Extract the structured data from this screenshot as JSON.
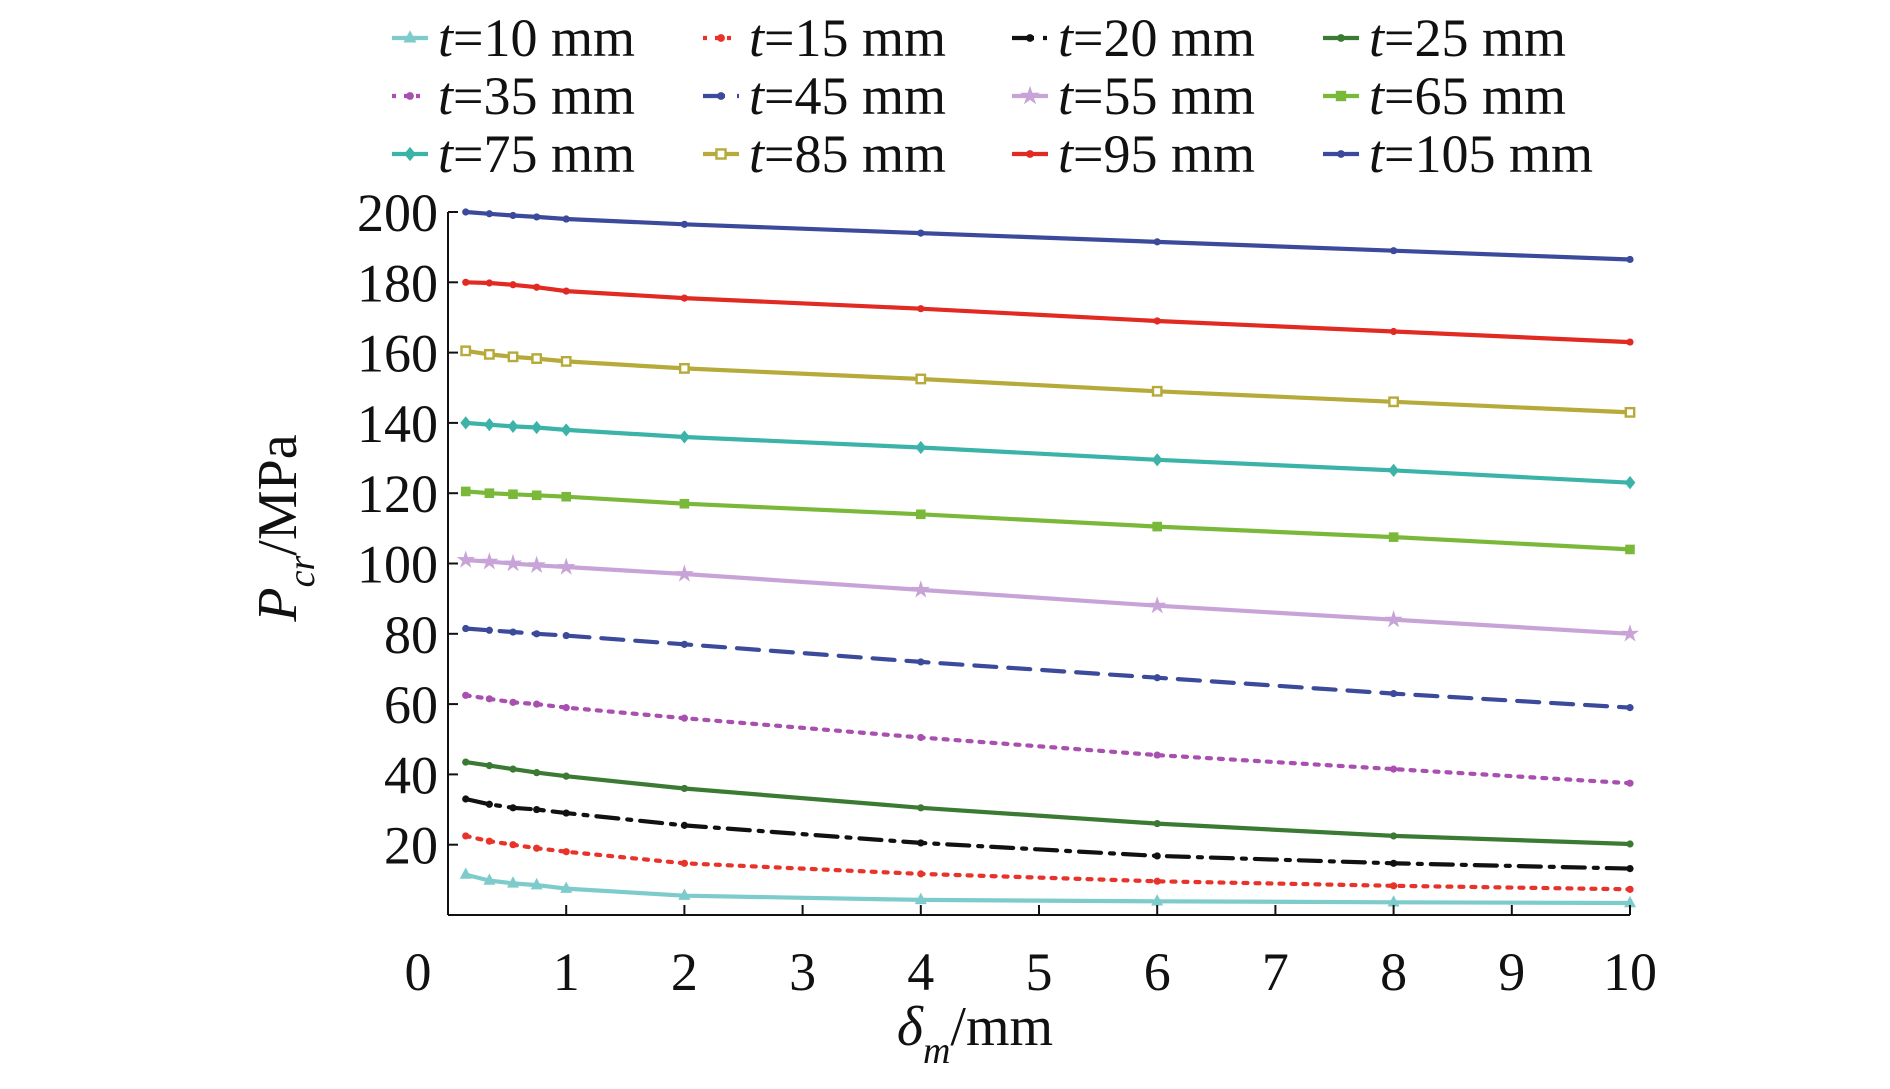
{
  "chart_data": {
    "type": "line",
    "xlabel": {
      "base": "δ",
      "sub": "m",
      "unit": "/mm"
    },
    "ylabel": {
      "base": "P",
      "sub": "cr",
      "unit": "/MPa"
    },
    "xlim": [
      0,
      10
    ],
    "ylim": [
      0,
      200
    ],
    "xticks": [
      0,
      1,
      2,
      3,
      4,
      5,
      6,
      7,
      8,
      9,
      10
    ],
    "yticks": [
      20,
      40,
      60,
      80,
      100,
      120,
      140,
      160,
      180,
      200
    ],
    "grid": false,
    "legend_position": "top",
    "x": [
      0.15,
      0.35,
      0.55,
      0.75,
      1,
      2,
      4,
      6,
      8,
      10
    ],
    "series": [
      {
        "name_prefix": "t",
        "name_value": "=10 mm",
        "color": "#7ecbcb",
        "dash": "solid",
        "marker": "triangle",
        "values": [
          11.5,
          9.8,
          9.0,
          8.5,
          7.5,
          5.5,
          4.3,
          3.9,
          3.6,
          3.4
        ]
      },
      {
        "name_prefix": "t",
        "name_value": "=15 mm",
        "color": "#e8332a",
        "dash": "dot",
        "marker": "dot",
        "values": [
          22.5,
          21.0,
          20.0,
          19.0,
          18.0,
          14.7,
          11.7,
          9.6,
          8.3,
          7.3
        ]
      },
      {
        "name_prefix": "t",
        "name_value": "=20 mm",
        "color": "#111111",
        "dash": "dashdot",
        "marker": "dot",
        "values": [
          33.0,
          31.5,
          30.5,
          30.0,
          29.0,
          25.5,
          20.5,
          16.8,
          14.7,
          13.2
        ]
      },
      {
        "name_prefix": "t",
        "name_value": "=25 mm",
        "color": "#3a7a33",
        "dash": "solid",
        "marker": "dot",
        "values": [
          43.5,
          42.5,
          41.5,
          40.5,
          39.5,
          36.0,
          30.5,
          26.0,
          22.5,
          20.2
        ]
      },
      {
        "name_prefix": "t",
        "name_value": "=35 mm",
        "color": "#a84fb0",
        "dash": "dot",
        "marker": "dot",
        "values": [
          62.5,
          61.5,
          60.5,
          60.0,
          59.0,
          56.0,
          50.5,
          45.5,
          41.5,
          37.5
        ]
      },
      {
        "name_prefix": "t",
        "name_value": "=45 mm",
        "color": "#3b4a9a",
        "dash": "dash",
        "marker": "dot",
        "values": [
          81.5,
          81.0,
          80.5,
          80.0,
          79.5,
          77.0,
          72.0,
          67.5,
          63.0,
          59.0
        ]
      },
      {
        "name_prefix": "t",
        "name_value": "=55 mm",
        "color": "#c8a3d8",
        "dash": "solid",
        "marker": "star",
        "values": [
          101.0,
          100.5,
          100.0,
          99.5,
          99.0,
          97.0,
          92.5,
          88.0,
          84.0,
          80.0
        ]
      },
      {
        "name_prefix": "t",
        "name_value": "=65 mm",
        "color": "#7ab83a",
        "dash": "solid",
        "marker": "square",
        "values": [
          120.5,
          120.0,
          119.7,
          119.4,
          119.0,
          117.0,
          114.0,
          110.5,
          107.5,
          104.0
        ]
      },
      {
        "name_prefix": "t",
        "name_value": "=75 mm",
        "color": "#3bb3a8",
        "dash": "solid",
        "marker": "diamond",
        "values": [
          140.0,
          139.5,
          139.0,
          138.7,
          138.0,
          136.0,
          133.0,
          129.5,
          126.5,
          123.0
        ]
      },
      {
        "name_prefix": "t",
        "name_value": "=85 mm",
        "color": "#b5aa3a",
        "dash": "solid",
        "marker": "square-open",
        "values": [
          160.5,
          159.5,
          158.8,
          158.3,
          157.5,
          155.5,
          152.5,
          149.0,
          146.0,
          143.0
        ]
      },
      {
        "name_prefix": "t",
        "name_value": "=95 mm",
        "color": "#e02a22",
        "dash": "solid",
        "marker": "dot",
        "values": [
          180.0,
          179.8,
          179.3,
          178.6,
          177.5,
          175.5,
          172.5,
          169.0,
          166.0,
          163.0
        ]
      },
      {
        "name_prefix": "t",
        "name_value": "=105 mm",
        "color": "#3b4a9a",
        "dash": "solid",
        "marker": "dot",
        "values": [
          200.0,
          199.5,
          199.0,
          198.6,
          198.0,
          196.5,
          194.0,
          191.5,
          189.0,
          186.5
        ]
      }
    ]
  }
}
